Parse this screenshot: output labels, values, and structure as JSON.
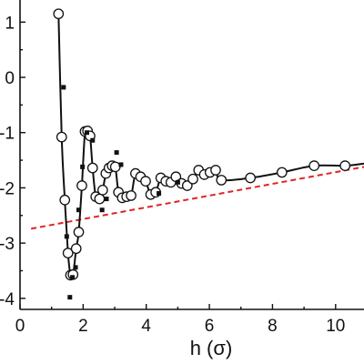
{
  "chart_data": {
    "type": "line",
    "title": "",
    "xlabel": "h (σ)",
    "ylabel": "",
    "xlim": [
      0,
      10.9
    ],
    "ylim": [
      -4.2,
      1.4
    ],
    "x_ticks": [
      0,
      2,
      4,
      6,
      8,
      10
    ],
    "y_ticks": [
      1,
      0,
      -1,
      -2,
      -3,
      -4
    ],
    "x_tick_labels": [
      "0",
      "2",
      "4",
      "6",
      "8",
      "10"
    ],
    "y_tick_labels": [
      "1",
      "0",
      "-1",
      "-2",
      "-3",
      "-4"
    ],
    "grid": false,
    "legend": "none",
    "colors": {
      "line": "#111111",
      "reference": "#e02424"
    },
    "series": [
      {
        "style": "line+open-circles",
        "x": [
          1.22,
          1.32,
          1.42,
          1.52,
          1.6,
          1.68,
          1.78,
          1.86,
          1.96,
          2.06,
          2.14,
          2.22,
          2.3,
          2.4,
          2.52,
          2.62,
          2.72,
          2.82,
          2.92,
          3.02,
          3.12,
          3.24,
          3.38,
          3.52,
          3.66,
          3.82,
          3.98,
          4.14,
          4.3,
          4.46,
          4.62,
          4.78,
          4.94,
          5.12,
          5.3,
          5.48,
          5.66,
          5.84,
          6.02,
          6.2,
          6.38,
          7.3,
          8.3,
          9.32,
          10.3,
          10.9
        ],
        "y": [
          1.15,
          -1.08,
          -2.22,
          -3.18,
          -3.58,
          -3.57,
          -3.1,
          -2.8,
          -1.96,
          -0.98,
          -0.97,
          -1.06,
          -1.64,
          -2.16,
          -2.2,
          -2.04,
          -1.74,
          -1.64,
          -1.6,
          -1.62,
          -2.08,
          -2.18,
          -2.16,
          -2.14,
          -1.74,
          -1.8,
          -1.88,
          -2.12,
          -2.08,
          -1.82,
          -1.88,
          -1.9,
          -1.8,
          -1.92,
          -1.96,
          -1.84,
          -1.68,
          -1.76,
          -1.72,
          -1.68,
          -1.86,
          -1.82,
          -1.72,
          -1.6,
          -1.6,
          -1.56
        ]
      },
      {
        "style": "filled-squares",
        "x": [
          1.38,
          1.48,
          1.58,
          1.66,
          1.76,
          1.86,
          1.98,
          2.12,
          2.3,
          2.6,
          2.74,
          3.06,
          3.2,
          4.4,
          5.0
        ],
        "y": [
          -0.18,
          -2.88,
          -3.98,
          -3.62,
          -3.44,
          -2.4,
          -1.62,
          -1.0,
          -1.14,
          -2.4,
          -2.2,
          -1.36,
          -1.58,
          -2.1,
          -1.9
        ]
      },
      {
        "style": "dashed-reference",
        "x": [
          0.35,
          10.9
        ],
        "y": [
          -2.74,
          -1.62
        ]
      }
    ]
  }
}
